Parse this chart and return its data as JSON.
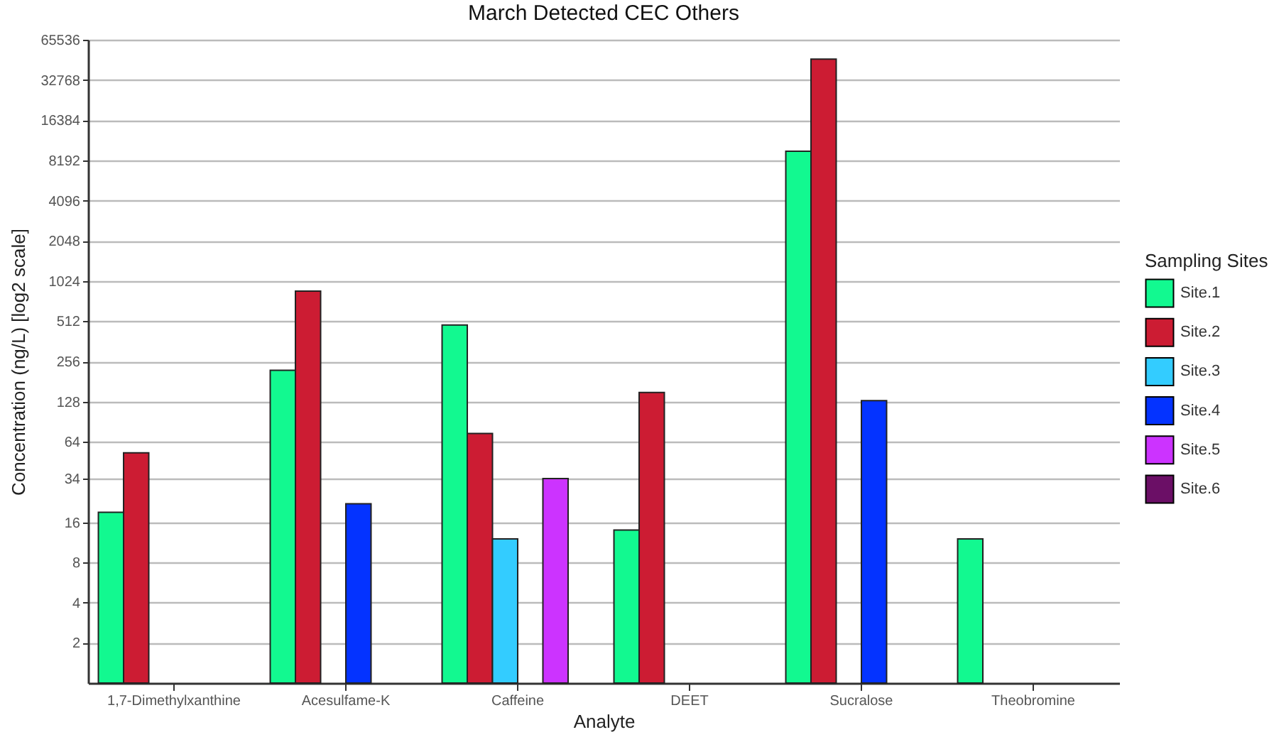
{
  "chart_data": {
    "type": "bar",
    "title": "March Detected CEC Others",
    "xlabel": "Analyte",
    "ylabel": "Concentration (ng/L) [log2 scale]",
    "legend_title": "Sampling Sites",
    "categories": [
      "1,7-Dimethylxanthine",
      "Acesulfame-K",
      "Caffeine",
      "DEET",
      "Sucralose",
      "Theobromine"
    ],
    "series": [
      {
        "name": "Site.1",
        "color": "#12f990",
        "values": [
          19,
          220,
          480,
          14,
          9600,
          12
        ]
      },
      {
        "name": "Site.2",
        "color": "#cc1c33",
        "values": [
          53,
          860,
          74,
          150,
          47000,
          null
        ]
      },
      {
        "name": "Site.3",
        "color": "#33ccff",
        "values": [
          null,
          null,
          12,
          null,
          null,
          null
        ]
      },
      {
        "name": "Site.4",
        "color": "#0433ff",
        "values": [
          null,
          22,
          null,
          null,
          130,
          null
        ]
      },
      {
        "name": "Site.5",
        "color": "#cc33ff",
        "values": [
          null,
          null,
          34,
          null,
          null,
          null
        ]
      },
      {
        "name": "Site.6",
        "color": "#6b0f66",
        "values": [
          null,
          null,
          null,
          null,
          null,
          null
        ]
      }
    ],
    "log": true,
    "ylim": [
      1,
      65536
    ],
    "yticks": [
      2,
      4,
      8,
      16,
      34,
      64,
      128,
      256,
      512,
      1024,
      2048,
      4096,
      8192,
      16384,
      32768,
      65536
    ],
    "grid": "y",
    "legend": "right"
  }
}
